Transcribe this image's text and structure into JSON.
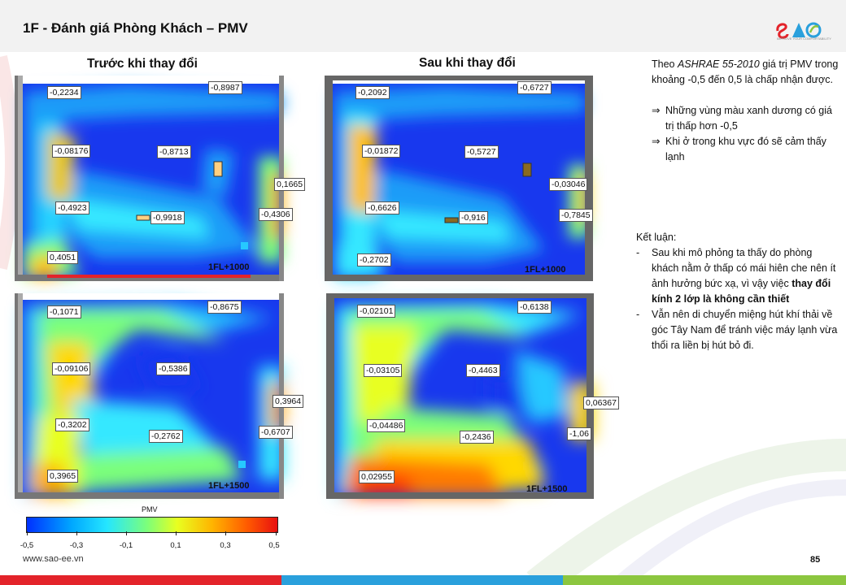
{
  "header": {
    "title": "1F - Đánh giá Phòng Khách – PMV",
    "logo_text": "SAO",
    "logo_tagline": "IMPROVE YOUR COMFORTABILITY"
  },
  "columns": {
    "before": "Trước khi thay đổi",
    "after": "Sau khi thay đổi"
  },
  "panels": {
    "before_1000": {
      "caption": "1FL+1000",
      "labels": [
        "-0,2234",
        "-0,8987",
        "-0,08176",
        "-0,8713",
        "0,1665",
        "-0,4923",
        "-0,9918",
        "-0,4306",
        "0,4051"
      ]
    },
    "after_1000": {
      "caption": "1FL+1000",
      "labels": [
        "-0,2092",
        "-0,6727",
        "-0,01872",
        "-0,5727",
        "-0,03046",
        "-0,6626",
        "-0,916",
        "-0,7845",
        "-0,2702"
      ]
    },
    "before_1500": {
      "caption": "1FL+1500",
      "labels": [
        "-0,1071",
        "-0,8675",
        "-0,09106",
        "-0,5386",
        "0,3964",
        "-0,3202",
        "-0,2762",
        "-0,6707",
        "0,3965"
      ]
    },
    "after_1500": {
      "caption": "1FL+1500",
      "labels": [
        "-0,02101",
        "-0,6138",
        "-0,03105",
        "-0,4463",
        "0,06367",
        "-0,04486",
        "-0,2436",
        "-1,06",
        "0,02955"
      ]
    }
  },
  "legend": {
    "title": "PMV",
    "ticks": [
      "-0,5",
      "-0,3",
      "-0,1",
      "0,1",
      "0,3",
      "0,5"
    ]
  },
  "notes": {
    "intro_pre": "Theo ",
    "intro_em": "ASHRAE 55-2010",
    "intro_post": " giá trị PMV trong khoảng -0,5 đến 0,5 là chấp nhận được.",
    "bullet1": "Những vùng màu xanh dương có giá trị thấp hơn -0,5",
    "bullet2": "Khi ở trong khu vực đó sẽ cảm thấy lạnh",
    "arrow": "⇒"
  },
  "conclusion": {
    "title": "Kết luận:",
    "item1_pre": "Sau khi mô phỏng ta thấy do phòng khách nằm ở thấp có mái hiên che nên ít ảnh hưởng bức xạ, vì vậy việc ",
    "item1_bold": "thay đổi kính 2 lớp là không cần thiết",
    "item2": "Vẫn nên di chuyển miệng hút khí thải về góc Tây Nam để tránh việc máy lạnh vừa thổi ra liền bị hút bỏ đi.",
    "dash": "-"
  },
  "footer": {
    "url": "www.sao-ee.vn",
    "page": "85"
  },
  "colors": {
    "red_bar": "#e3232a",
    "blue_bar": "#2aa0dc",
    "green_bar": "#8cc63f"
  }
}
